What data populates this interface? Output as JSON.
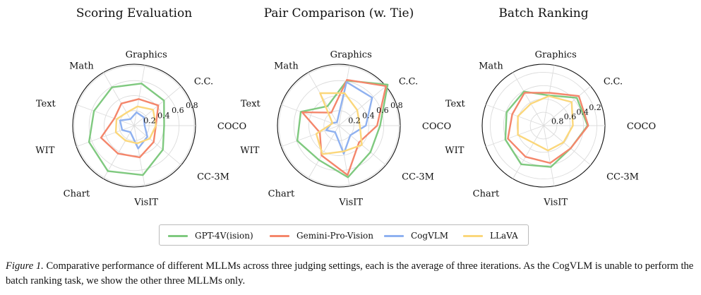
{
  "colors": {
    "GPT-4V(ision)": "#7fc97f",
    "Gemini-Pro-Vision": "#f4866b",
    "CogVLM": "#8fb1f0",
    "LLaVA": "#fbd77b"
  },
  "chart_data": [
    {
      "type": "radar",
      "title": "Scoring Evaluation",
      "axes": [
        "COCO",
        "C.C.",
        "Graphics",
        "Math",
        "Text",
        "WIT",
        "Chart",
        "VisIT",
        "CC-3M"
      ],
      "radial_ticks": [
        "0.2",
        "0.4",
        "0.6",
        "0.8"
      ],
      "rlim": [
        0,
        0.8
      ],
      "reversed": false,
      "series": [
        {
          "name": "GPT-4V(ision)",
          "values": [
            0.4,
            0.52,
            0.57,
            0.59,
            0.57,
            0.64,
            0.7,
            0.67,
            0.5
          ]
        },
        {
          "name": "Gemini-Pro-Vision",
          "values": [
            0.29,
            0.42,
            0.36,
            0.34,
            0.28,
            0.47,
            0.43,
            0.43,
            0.34
          ]
        },
        {
          "name": "CogVLM",
          "values": [
            0.14,
            0.17,
            0.18,
            0.1,
            0.2,
            0.17,
            0.1,
            0.31,
            0.23
          ]
        },
        {
          "name": "LLaVA",
          "values": [
            0.29,
            0.33,
            0.26,
            0.2,
            0.25,
            0.26,
            0.23,
            0.24,
            0.27
          ]
        }
      ]
    },
    {
      "type": "radar",
      "title": "Pair Comparison (w. Tie)",
      "axes": [
        "COCO",
        "C.C.",
        "Graphics",
        "Math",
        "Text",
        "WIT",
        "Chart",
        "VisIT",
        "CC-3M"
      ],
      "radial_ticks": [
        "0.2",
        "0.4",
        "0.6",
        "0.8"
      ],
      "rlim": [
        0,
        0.8
      ],
      "reversed": false,
      "series": [
        {
          "name": "GPT-4V(ision)",
          "values": [
            0.55,
            0.85,
            0.61,
            0.3,
            0.54,
            0.59,
            0.53,
            0.7,
            0.55
          ]
        },
        {
          "name": "Gemini-Pro-Vision",
          "values": [
            0.51,
            0.82,
            0.62,
            0.2,
            0.52,
            0.27,
            0.46,
            0.67,
            0.35
          ]
        },
        {
          "name": "CogVLM",
          "values": [
            0.36,
            0.58,
            0.59,
            0.05,
            0.1,
            0.18,
            0.1,
            0.38,
            0.2
          ]
        },
        {
          "name": "LLaVA",
          "values": [
            0.28,
            0.32,
            0.44,
            0.5,
            0.09,
            0.32,
            0.44,
            0.35,
            0.4
          ]
        }
      ]
    },
    {
      "type": "radar",
      "title": "Batch Ranking",
      "axes": [
        "COCO",
        "C.C.",
        "Graphics",
        "Math",
        "Text",
        "WIT",
        "Chart",
        "VisIT",
        "CC-3M"
      ],
      "radial_ticks": [
        "0.2",
        "0.4",
        "0.6",
        "0.8"
      ],
      "rlim": [
        0.1,
        1.0
      ],
      "reversed": true,
      "series": [
        {
          "name": "GPT-4V(ision)",
          "values": [
            0.34,
            0.35,
            0.54,
            0.41,
            0.41,
            0.39,
            0.33,
            0.37,
            0.47
          ]
        },
        {
          "name": "Gemini-Pro-Vision",
          "values": [
            0.33,
            0.31,
            0.5,
            0.43,
            0.5,
            0.43,
            0.46,
            0.43,
            0.47
          ]
        },
        {
          "name": "LLaVA",
          "values": [
            0.56,
            0.45,
            0.55,
            0.62,
            0.59,
            0.59,
            0.7,
            0.62,
            0.61
          ]
        }
      ]
    }
  ],
  "legend": [
    "GPT-4V(ision)",
    "Gemini-Pro-Vision",
    "CogVLM",
    "LLaVA"
  ],
  "caption": {
    "label": "Figure 1.",
    "text": "Comparative performance of different MLLMs across three judging settings, each is the average of three iterations. As the CogVLM is unable to perform the batch ranking task, we show the other three MLLMs only."
  }
}
